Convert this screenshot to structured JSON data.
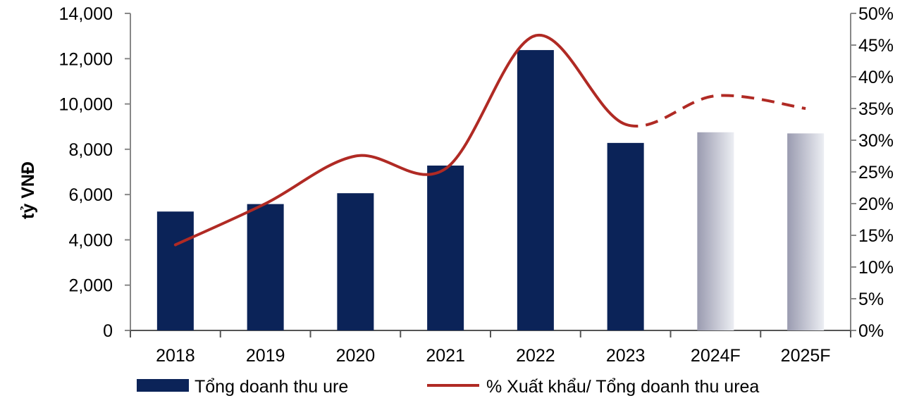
{
  "chart_data": {
    "type": "bar",
    "categories": [
      "2018",
      "2019",
      "2020",
      "2021",
      "2022",
      "2023",
      "2024F",
      "2025F"
    ],
    "series": [
      {
        "name": "Tổng doanh thu ure",
        "type": "bar",
        "axis": "left",
        "values": [
          5250,
          5580,
          6060,
          7280,
          12380,
          8280,
          8750,
          8700
        ],
        "colors": [
          "#0b2358",
          "#0b2358",
          "#0b2358",
          "#0b2358",
          "#0b2358",
          "#0b2358",
          "gradient-grey",
          "gradient-grey"
        ]
      },
      {
        "name": "% Xuất khẩu/ Tổng doanh thu urea",
        "type": "line",
        "axis": "right",
        "values": [
          13.5,
          20.0,
          27.5,
          25.5,
          46.5,
          32.5,
          37.0,
          35.0
        ],
        "unit": "%",
        "solid_through": "2023",
        "dashed_from": "2023",
        "color": "#b02a24"
      }
    ],
    "ylabel": "tỷ VNĐ",
    "y_ticks": [
      "0",
      "2,000",
      "4,000",
      "6,000",
      "8,000",
      "10,000",
      "12,000",
      "14,000"
    ],
    "y2_ticks": [
      "0%",
      "5%",
      "10%",
      "15%",
      "20%",
      "25%",
      "30%",
      "35%",
      "40%",
      "45%",
      "50%"
    ],
    "ylim": [
      0,
      14000
    ],
    "y2lim": [
      0,
      50
    ],
    "legend_position": "bottom",
    "grid": false
  }
}
